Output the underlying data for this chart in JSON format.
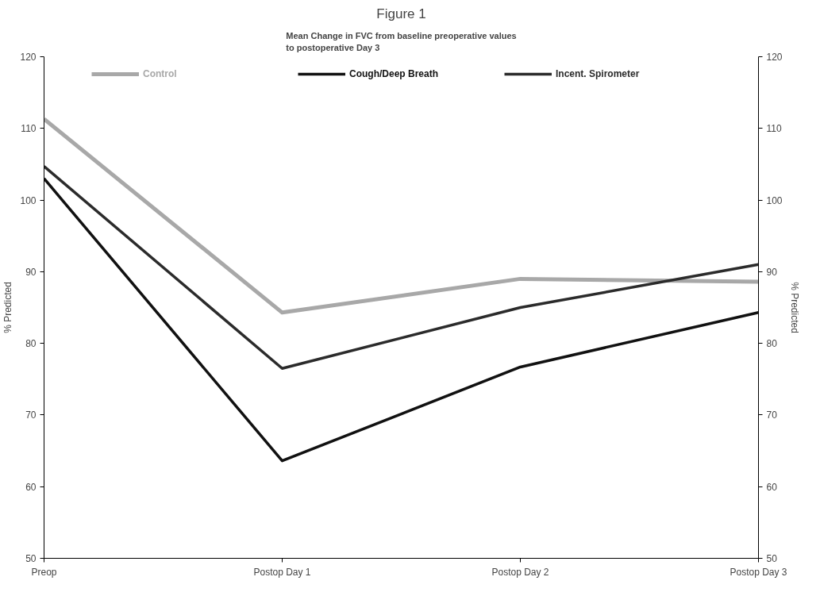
{
  "chart_data": {
    "type": "line",
    "title": "Figure 1",
    "subtitle": "Mean Change in FVC from baseline preoperative values\nto postoperative Day 3",
    "categories": [
      "Preop",
      "Postop Day 1",
      "Postop Day 2",
      "Postop Day 3"
    ],
    "ylabel": "% Predicted",
    "y2label": "% Predicted",
    "ylim": [
      50,
      120
    ],
    "yticks": [
      50,
      60,
      70,
      80,
      90,
      100,
      110,
      120
    ],
    "y2lim": [
      50,
      120
    ],
    "y2ticks": [
      50,
      60,
      70,
      80,
      90,
      100,
      110,
      120
    ],
    "grid": false,
    "legend": "top",
    "marker": "none",
    "line_style": "solid",
    "series": [
      {
        "name": "Control",
        "color": "#a8a8a8",
        "values": [
          111.3,
          84.3,
          89,
          88.6
        ]
      },
      {
        "name": "Cough/Deep Breath",
        "color": "#111111",
        "values": [
          103,
          63.6,
          76.7,
          84.3
        ]
      },
      {
        "name": "Incent. Spirometer",
        "color": "#2b2b2b",
        "values": [
          104.7,
          76.5,
          85,
          91
        ]
      }
    ]
  }
}
